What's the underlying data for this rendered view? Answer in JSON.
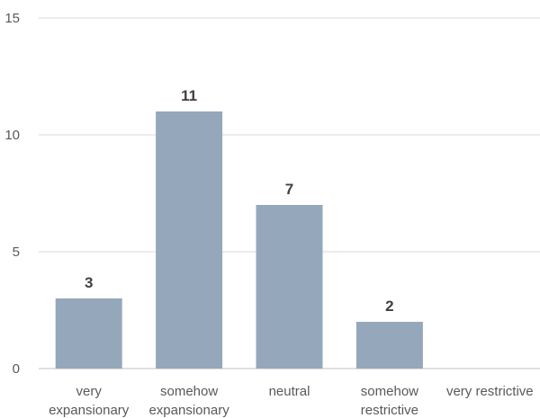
{
  "chart_data": {
    "type": "bar",
    "categories": [
      [
        "very",
        "expansionary"
      ],
      [
        "somehow",
        "expansionary"
      ],
      [
        "neutral"
      ],
      [
        "somehow",
        "restrictive"
      ],
      [
        "very restrictive"
      ]
    ],
    "values": [
      3,
      11,
      7,
      2,
      0
    ],
    "data_labels": [
      "3",
      "11",
      "7",
      "2",
      ""
    ],
    "yticks": [
      "0",
      "5",
      "10",
      "15"
    ],
    "ylim": [
      0,
      15
    ],
    "grid": true,
    "bar_color": "#95a8bb",
    "grid_color": "#d9d9d9"
  }
}
